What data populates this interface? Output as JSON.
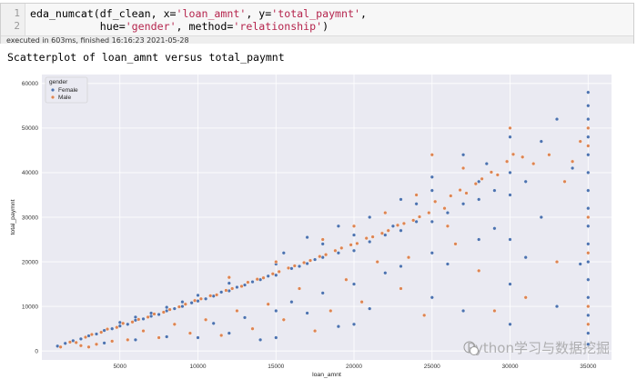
{
  "cell": {
    "line_numbers": [
      "1",
      "2"
    ],
    "code_line1": {
      "p1": "eda_numcat(df_clean, x=",
      "s1": "'loan_amnt'",
      "p2": ", y=",
      "s2": "'total_paymnt'",
      "p3": ","
    },
    "code_line2": {
      "indent": "           hue=",
      "s1": "'gender'",
      "p2": ", method=",
      "s2": "'relationship'",
      "p3": ")"
    },
    "status": "executed in 603ms, finished 16:16:23 2021-05-28"
  },
  "output": {
    "title": "Scatterplot of loan_amnt versus total_paymnt"
  },
  "watermark": "Python学习与数据挖掘",
  "colors": {
    "plot_bg": "#eaeaf2",
    "female": "#4c72b0",
    "male": "#dd8452",
    "grid": "#ffffff"
  },
  "chart_data": {
    "type": "scatter",
    "title": "",
    "xlabel": "loan_amnt",
    "ylabel": "total_paymnt",
    "xlim": [
      0,
      36500
    ],
    "ylim": [
      -2000,
      62000
    ],
    "xticks": [
      5000,
      10000,
      15000,
      20000,
      25000,
      30000,
      35000
    ],
    "xtick_labels": [
      "5000",
      "10000",
      "15000",
      "20000",
      "25000",
      "30000",
      "35000"
    ],
    "yticks": [
      0,
      10000,
      20000,
      30000,
      40000,
      50000,
      60000
    ],
    "ytick_labels": [
      "0",
      "10000",
      "20000",
      "30000",
      "40000",
      "50000",
      "60000"
    ],
    "grid": true,
    "legend": {
      "title": "gender",
      "placement": "top-left",
      "entries": [
        "Female",
        "Male"
      ]
    },
    "series": [
      {
        "name": "Female",
        "points": [
          [
            1000,
            1100
          ],
          [
            1500,
            1700
          ],
          [
            2000,
            2300
          ],
          [
            2500,
            2700
          ],
          [
            3000,
            3400
          ],
          [
            3500,
            3800
          ],
          [
            4000,
            4600
          ],
          [
            4500,
            5000
          ],
          [
            5000,
            5600
          ],
          [
            5000,
            6400
          ],
          [
            5500,
            6000
          ],
          [
            6000,
            6900
          ],
          [
            6000,
            7600
          ],
          [
            6500,
            7200
          ],
          [
            7000,
            7800
          ],
          [
            7000,
            8500
          ],
          [
            7500,
            8200
          ],
          [
            8000,
            9000
          ],
          [
            8000,
            9800
          ],
          [
            8500,
            9500
          ],
          [
            9000,
            10000
          ],
          [
            9000,
            11000
          ],
          [
            9600,
            10800
          ],
          [
            10000,
            11200
          ],
          [
            10000,
            12500
          ],
          [
            10500,
            11700
          ],
          [
            11000,
            12300
          ],
          [
            11500,
            13200
          ],
          [
            12000,
            13500
          ],
          [
            12000,
            15200
          ],
          [
            12000,
            4000
          ],
          [
            12500,
            14300
          ],
          [
            13000,
            14800
          ],
          [
            13500,
            15500
          ],
          [
            14000,
            16000
          ],
          [
            14500,
            16800
          ],
          [
            15000,
            17000
          ],
          [
            15000,
            19500
          ],
          [
            15000,
            9000
          ],
          [
            15000,
            3000
          ],
          [
            16000,
            18500
          ],
          [
            16500,
            19000
          ],
          [
            17000,
            19600
          ],
          [
            17500,
            20500
          ],
          [
            18000,
            21000
          ],
          [
            18000,
            24000
          ],
          [
            18000,
            13000
          ],
          [
            19000,
            22000
          ],
          [
            20000,
            22500
          ],
          [
            20000,
            26000
          ],
          [
            20000,
            15000
          ],
          [
            20000,
            6000
          ],
          [
            21000,
            24500
          ],
          [
            22000,
            26000
          ],
          [
            22500,
            28000
          ],
          [
            23000,
            27000
          ],
          [
            24000,
            29000
          ],
          [
            24000,
            33000
          ],
          [
            25000,
            29000
          ],
          [
            25000,
            36000
          ],
          [
            25000,
            22000
          ],
          [
            25000,
            12000
          ],
          [
            26000,
            31000
          ],
          [
            27000,
            33000
          ],
          [
            28000,
            34000
          ],
          [
            28000,
            38000
          ],
          [
            29000,
            36000
          ],
          [
            30000,
            35000
          ],
          [
            30000,
            40000
          ],
          [
            30000,
            48000
          ],
          [
            30000,
            25000
          ],
          [
            30000,
            15000
          ],
          [
            30000,
            6000
          ],
          [
            31000,
            38000
          ],
          [
            32000,
            47000
          ],
          [
            32000,
            30000
          ],
          [
            33000,
            52000
          ],
          [
            34000,
            41000
          ],
          [
            35000,
            58000
          ],
          [
            35000,
            55000
          ],
          [
            35000,
            52000
          ],
          [
            35000,
            48000
          ],
          [
            35000,
            44000
          ],
          [
            35000,
            40000
          ],
          [
            35000,
            36000
          ],
          [
            35000,
            32000
          ],
          [
            35000,
            28000
          ],
          [
            35000,
            24000
          ],
          [
            35000,
            20000
          ],
          [
            35000,
            16000
          ],
          [
            35000,
            12000
          ],
          [
            35000,
            8000
          ],
          [
            35000,
            4000
          ],
          [
            35000,
            1500
          ],
          [
            4000,
            1800
          ],
          [
            6000,
            2500
          ],
          [
            8000,
            3200
          ],
          [
            10000,
            3000
          ],
          [
            11000,
            6200
          ],
          [
            13000,
            7500
          ],
          [
            14000,
            2500
          ],
          [
            16000,
            11000
          ],
          [
            17000,
            8500
          ],
          [
            19000,
            5500
          ],
          [
            21000,
            9500
          ],
          [
            22000,
            17500
          ],
          [
            23000,
            19000
          ],
          [
            26000,
            19500
          ],
          [
            27000,
            9000
          ],
          [
            28000,
            25000
          ],
          [
            29000,
            27500
          ],
          [
            31000,
            21000
          ],
          [
            33000,
            10000
          ],
          [
            34500,
            19500
          ],
          [
            19000,
            28000
          ],
          [
            21000,
            30000
          ],
          [
            23000,
            34000
          ],
          [
            25000,
            39000
          ],
          [
            27000,
            44000
          ],
          [
            28500,
            42000
          ],
          [
            17000,
            25500
          ],
          [
            15500,
            22000
          ]
        ]
      },
      {
        "name": "Male",
        "points": [
          [
            1200,
            900
          ],
          [
            1800,
            2000
          ],
          [
            2200,
            1900
          ],
          [
            2800,
            3100
          ],
          [
            3200,
            3700
          ],
          [
            3800,
            4200
          ],
          [
            4200,
            4900
          ],
          [
            4800,
            5300
          ],
          [
            5200,
            6200
          ],
          [
            5800,
            6500
          ],
          [
            6200,
            7100
          ],
          [
            6800,
            7600
          ],
          [
            7200,
            8300
          ],
          [
            7800,
            8700
          ],
          [
            8200,
            9300
          ],
          [
            8800,
            9900
          ],
          [
            9200,
            10500
          ],
          [
            9800,
            11300
          ],
          [
            10200,
            11700
          ],
          [
            10800,
            12400
          ],
          [
            11200,
            12600
          ],
          [
            11800,
            13600
          ],
          [
            12200,
            14000
          ],
          [
            12800,
            14500
          ],
          [
            13200,
            15400
          ],
          [
            13800,
            16100
          ],
          [
            14200,
            16400
          ],
          [
            14800,
            17300
          ],
          [
            15200,
            17800
          ],
          [
            15800,
            18600
          ],
          [
            16200,
            19100
          ],
          [
            16800,
            19800
          ],
          [
            17200,
            20300
          ],
          [
            17800,
            21200
          ],
          [
            18200,
            21600
          ],
          [
            18800,
            22500
          ],
          [
            19200,
            23100
          ],
          [
            19800,
            23800
          ],
          [
            20200,
            24100
          ],
          [
            20800,
            25300
          ],
          [
            21200,
            25600
          ],
          [
            21800,
            26400
          ],
          [
            22200,
            27000
          ],
          [
            22800,
            28200
          ],
          [
            23200,
            28600
          ],
          [
            23800,
            29300
          ],
          [
            24200,
            30100
          ],
          [
            24800,
            31000
          ],
          [
            25200,
            33500
          ],
          [
            25800,
            32000
          ],
          [
            26200,
            34800
          ],
          [
            26800,
            36100
          ],
          [
            27200,
            35400
          ],
          [
            27800,
            37500
          ],
          [
            28200,
            38600
          ],
          [
            28800,
            40100
          ],
          [
            29200,
            39500
          ],
          [
            29800,
            42500
          ],
          [
            30200,
            44100
          ],
          [
            30800,
            43500
          ],
          [
            31500,
            42000
          ],
          [
            32500,
            44000
          ],
          [
            33500,
            38000
          ],
          [
            34000,
            42500
          ],
          [
            34500,
            47000
          ],
          [
            35000,
            50000
          ],
          [
            35000,
            46000
          ],
          [
            35000,
            30000
          ],
          [
            35000,
            22000
          ],
          [
            35000,
            10000
          ],
          [
            35000,
            6000
          ],
          [
            33000,
            20000
          ],
          [
            31000,
            12000
          ],
          [
            29000,
            9000
          ],
          [
            28000,
            18000
          ],
          [
            26500,
            24000
          ],
          [
            24500,
            8000
          ],
          [
            23000,
            14000
          ],
          [
            21500,
            20000
          ],
          [
            20500,
            11000
          ],
          [
            19500,
            16000
          ],
          [
            18500,
            9000
          ],
          [
            17500,
            4500
          ],
          [
            16500,
            14000
          ],
          [
            15500,
            7000
          ],
          [
            14500,
            10500
          ],
          [
            13500,
            5000
          ],
          [
            12500,
            9000
          ],
          [
            11500,
            3500
          ],
          [
            10500,
            7000
          ],
          [
            9500,
            4000
          ],
          [
            8500,
            6000
          ],
          [
            7500,
            3000
          ],
          [
            6500,
            4500
          ],
          [
            5500,
            2500
          ],
          [
            4500,
            2200
          ],
          [
            3500,
            1500
          ],
          [
            2500,
            1200
          ],
          [
            3000,
            900
          ],
          [
            12000,
            16500
          ],
          [
            15000,
            20000
          ],
          [
            18000,
            25000
          ],
          [
            20000,
            28000
          ],
          [
            22000,
            31000
          ],
          [
            24000,
            35000
          ],
          [
            25000,
            44000
          ],
          [
            27000,
            41000
          ],
          [
            30000,
            50000
          ],
          [
            26000,
            28000
          ],
          [
            23500,
            21000
          ]
        ]
      }
    ]
  }
}
